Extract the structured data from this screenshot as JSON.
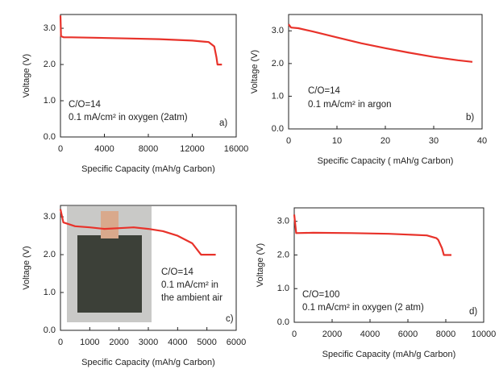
{
  "chart_data": [
    {
      "type": "line",
      "panel_label": "a)",
      "y_label": "Voltage (V)",
      "x_label": "Specific Capacity (mAh/g Carbon)",
      "annotations": [
        "C/O=14",
        "0.1 mA/cm² in oxygen (2atm)"
      ],
      "color": "#e8322a",
      "x": [
        0,
        50,
        300,
        1000,
        3000,
        6000,
        9000,
        12000,
        13500,
        14000,
        14200,
        14300,
        14500,
        14700
      ],
      "values": [
        3.35,
        2.78,
        2.75,
        2.75,
        2.74,
        2.72,
        2.7,
        2.66,
        2.62,
        2.5,
        2.2,
        2.0,
        2.0,
        2.0
      ],
      "xlim": [
        0,
        16000
      ],
      "xticks": [
        0,
        4000,
        8000,
        12000,
        16000
      ],
      "ylim": [
        0,
        3.38
      ],
      "yticks": [
        {
          "value": 0,
          "label": "0.0"
        },
        {
          "value": 1,
          "label": "1.0"
        },
        {
          "value": 2,
          "label": "2.0"
        },
        {
          "value": 3,
          "label": "3.0"
        }
      ]
    },
    {
      "type": "line",
      "panel_label": "b)",
      "y_label": "Voltage (V)",
      "x_label": "Specific Capacity ( mAh/g Carbon)",
      "annotations": [
        "C/O=14",
        "0.1 mA/cm² in argon"
      ],
      "color": "#e8322a",
      "x": [
        0,
        0.5,
        2,
        5,
        10,
        15,
        20,
        25,
        30,
        35,
        38
      ],
      "values": [
        3.2,
        3.1,
        3.08,
        2.98,
        2.8,
        2.62,
        2.47,
        2.33,
        2.2,
        2.1,
        2.05
      ],
      "xlim": [
        0,
        40
      ],
      "xticks": [
        0,
        10,
        20,
        30,
        40
      ],
      "ylim": [
        0,
        3.5
      ],
      "yticks": [
        {
          "value": 0,
          "label": "0.0"
        },
        {
          "value": 1,
          "label": "1.0"
        },
        {
          "value": 2,
          "label": "2.0"
        },
        {
          "value": 3,
          "label": "3.0"
        }
      ]
    },
    {
      "type": "line",
      "panel_label": "c)",
      "y_label": "Voltage (V)",
      "x_label": "Specific Capacity (mAh/g Carbon)",
      "annotations": [
        "C/O=14",
        "0.1 mA/cm² in",
        "the ambient air"
      ],
      "color": "#e8322a",
      "x": [
        0,
        100,
        500,
        1000,
        1500,
        2000,
        2500,
        3000,
        3500,
        4000,
        4500,
        4700,
        4800,
        5000,
        5300
      ],
      "values": [
        3.2,
        2.85,
        2.75,
        2.72,
        2.68,
        2.7,
        2.72,
        2.68,
        2.62,
        2.5,
        2.3,
        2.1,
        2.0,
        2.0,
        2.0
      ],
      "xlim": [
        0,
        6000
      ],
      "xticks": [
        0,
        1000,
        2000,
        3000,
        4000,
        5000,
        6000
      ],
      "ylim": [
        0,
        3.3
      ],
      "yticks": [
        {
          "value": 0,
          "label": "0.0"
        },
        {
          "value": 1,
          "label": "1.0"
        },
        {
          "value": 2,
          "label": "2.0"
        },
        {
          "value": 3,
          "label": "3.0"
        }
      ]
    },
    {
      "type": "line",
      "panel_label": "d)",
      "y_label": "Voltage (V)",
      "x_label": "Specific Capacity (mAh/g Carbon)",
      "annotations": [
        "C/O=100",
        "0.1 mA/cm² in oxygen (2 atm)"
      ],
      "color": "#e8322a",
      "x": [
        0,
        100,
        1000,
        3000,
        5000,
        7000,
        7500,
        7600,
        7800,
        7900,
        8100,
        8300
      ],
      "values": [
        3.2,
        2.65,
        2.66,
        2.65,
        2.63,
        2.58,
        2.5,
        2.45,
        2.2,
        2.0,
        2.0,
        2.0
      ],
      "xlim": [
        0,
        10000
      ],
      "xticks": [
        0,
        2000,
        4000,
        6000,
        8000,
        10000
      ],
      "ylim": [
        0,
        3.4
      ],
      "yticks": [
        {
          "value": 0,
          "label": "0.0"
        },
        {
          "value": 1,
          "label": "1.0"
        },
        {
          "value": 2,
          "label": "2.0"
        },
        {
          "value": 3,
          "label": "3.0"
        }
      ]
    }
  ]
}
